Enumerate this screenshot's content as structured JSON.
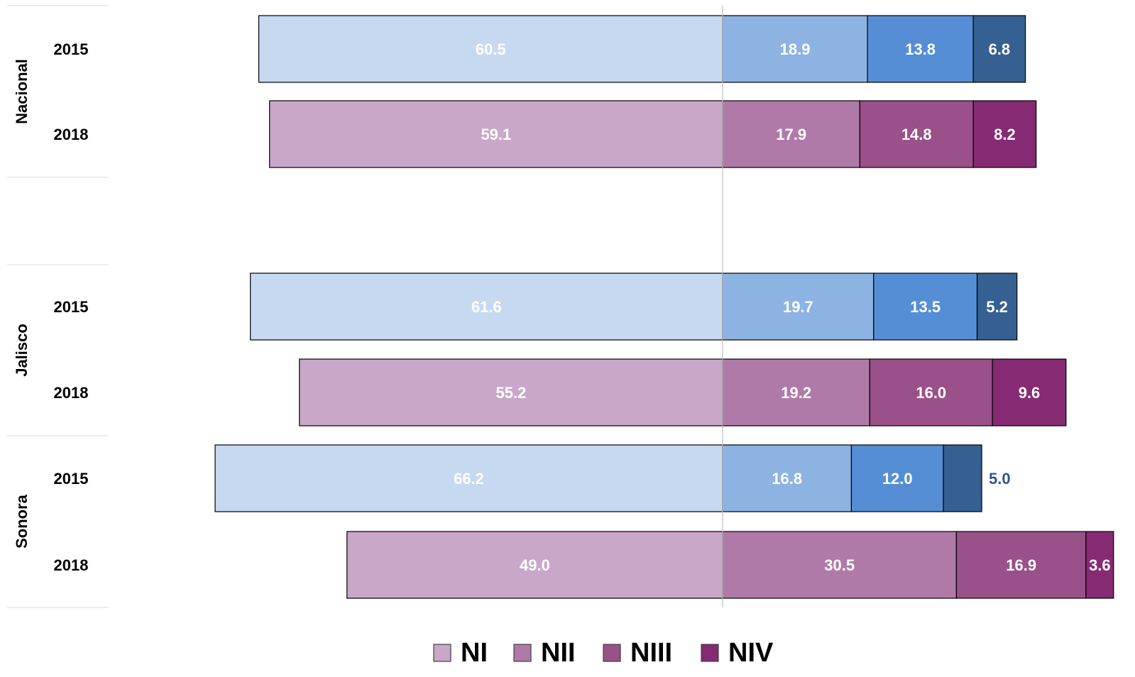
{
  "chart_data": {
    "type": "bar",
    "orientation": "horizontal",
    "stacked": true,
    "diverging": true,
    "groups": [
      {
        "name": "Nacional",
        "rows": [
          {
            "year": "2015",
            "palette": "blue",
            "values": [
              60.5,
              18.9,
              13.8,
              6.8
            ]
          },
          {
            "year": "2018",
            "palette": "purple",
            "values": [
              59.1,
              17.9,
              14.8,
              8.2
            ]
          }
        ]
      },
      {
        "name": "Jalisco",
        "rows": [
          {
            "year": "2015",
            "palette": "blue",
            "values": [
              61.6,
              19.7,
              13.5,
              5.2
            ]
          },
          {
            "year": "2018",
            "palette": "purple",
            "values": [
              55.2,
              19.2,
              16.0,
              9.6
            ]
          }
        ]
      },
      {
        "name": "Sonora",
        "rows": [
          {
            "year": "2015",
            "palette": "blue",
            "values": [
              66.2,
              16.8,
              12.0,
              5.0
            ],
            "outside_label_last": true
          },
          {
            "year": "2018",
            "palette": "purple",
            "values": [
              49.0,
              30.5,
              16.9,
              3.6
            ]
          }
        ]
      }
    ],
    "legend": {
      "position": "bottom",
      "entries": [
        "NI",
        "NII",
        "NIII",
        "NIV"
      ]
    },
    "colors": {
      "blue": [
        "#c6d9f1",
        "#8db3e2",
        "#558ed5",
        "#366092"
      ],
      "purple": [
        "#c8a7c9",
        "#b07aa8",
        "#9a5089",
        "#862a73"
      ],
      "outside_label": "#2f5597"
    }
  }
}
